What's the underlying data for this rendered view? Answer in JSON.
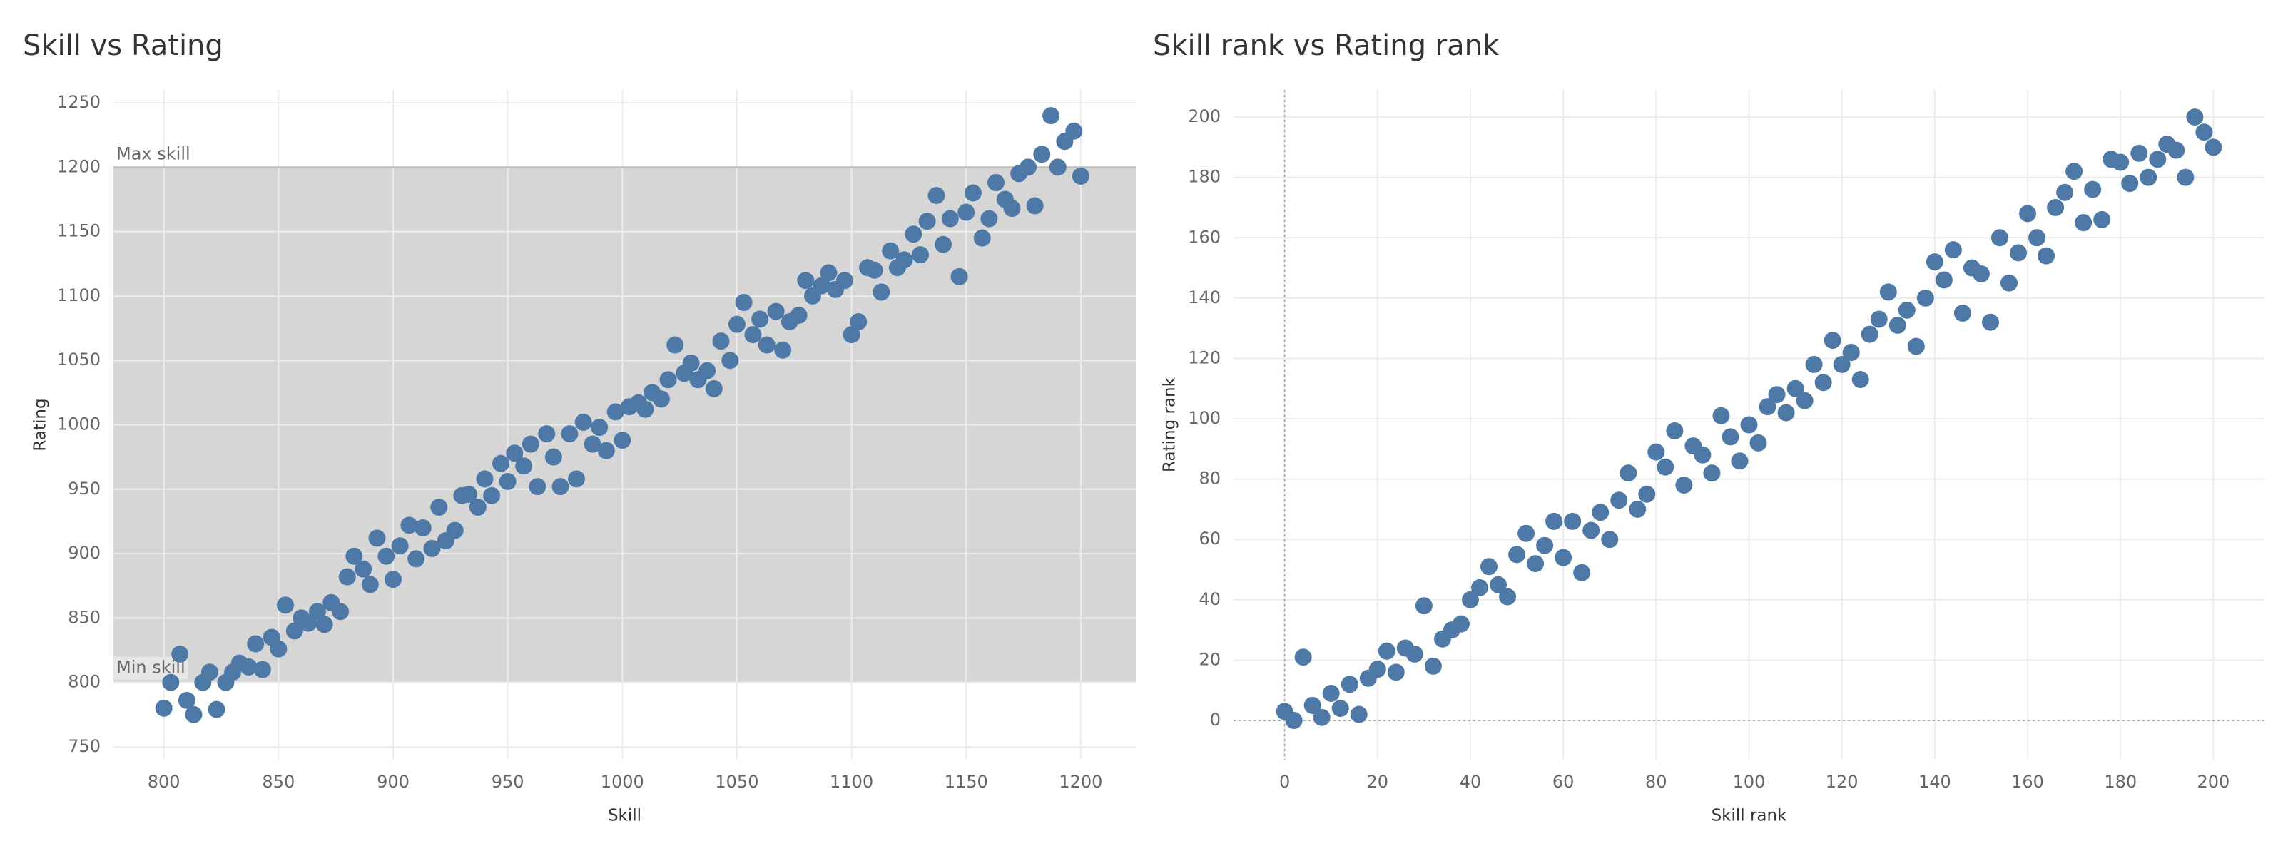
{
  "chart_data": [
    {
      "type": "scatter",
      "title": "Skill vs Rating",
      "x_label": "Skill",
      "y_label": "Rating",
      "x": [
        800,
        803,
        807,
        810,
        813,
        817,
        820,
        823,
        827,
        830,
        833,
        837,
        840,
        843,
        847,
        850,
        853,
        857,
        860,
        863,
        867,
        870,
        873,
        877,
        880,
        883,
        887,
        890,
        893,
        897,
        900,
        903,
        907,
        910,
        913,
        917,
        920,
        923,
        927,
        930,
        933,
        937,
        940,
        943,
        947,
        950,
        953,
        957,
        960,
        963,
        967,
        970,
        973,
        977,
        980,
        983,
        987,
        990,
        993,
        997,
        1000,
        1003,
        1007,
        1010,
        1013,
        1017,
        1020,
        1023,
        1027,
        1030,
        1033,
        1037,
        1040,
        1043,
        1047,
        1050,
        1053,
        1057,
        1060,
        1063,
        1067,
        1070,
        1073,
        1077,
        1080,
        1083,
        1087,
        1090,
        1093,
        1097,
        1100,
        1103,
        1107,
        1110,
        1113,
        1117,
        1120,
        1123,
        1127,
        1130,
        1133,
        1137,
        1140,
        1143,
        1147,
        1150,
        1153,
        1157,
        1160,
        1163,
        1167,
        1170,
        1173,
        1177,
        1180,
        1183,
        1187,
        1190,
        1193,
        1197,
        1200
      ],
      "values": [
        780,
        800,
        822,
        786,
        775,
        800,
        808,
        779,
        800,
        808,
        815,
        812,
        830,
        810,
        835,
        826,
        860,
        840,
        850,
        846,
        855,
        845,
        862,
        855,
        882,
        898,
        888,
        876,
        912,
        898,
        880,
        906,
        922,
        896,
        920,
        904,
        936,
        910,
        918,
        945,
        946,
        936,
        958,
        945,
        970,
        956,
        978,
        968,
        985,
        952,
        993,
        975,
        952,
        993,
        958,
        1002,
        985,
        998,
        980,
        1010,
        988,
        1014,
        1017,
        1012,
        1025,
        1020,
        1035,
        1062,
        1040,
        1048,
        1035,
        1042,
        1028,
        1065,
        1050,
        1078,
        1095,
        1070,
        1082,
        1062,
        1088,
        1058,
        1080,
        1085,
        1112,
        1100,
        1108,
        1118,
        1105,
        1112,
        1070,
        1080,
        1122,
        1120,
        1103,
        1135,
        1122,
        1128,
        1148,
        1132,
        1158,
        1178,
        1140,
        1160,
        1115,
        1165,
        1180,
        1145,
        1160,
        1188,
        1175,
        1168,
        1195,
        1200,
        1170,
        1210,
        1240,
        1200,
        1220,
        1228,
        1193
      ],
      "color": "#4e79a7",
      "xlim": [
        778,
        1224
      ],
      "ylim": [
        740,
        1260
      ],
      "xticks": [
        800,
        850,
        900,
        950,
        1000,
        1050,
        1100,
        1150,
        1200
      ],
      "yticks": [
        750,
        800,
        850,
        900,
        950,
        1000,
        1050,
        1100,
        1150,
        1200,
        1250
      ],
      "grid": true,
      "reference_band": {
        "from": 800,
        "to": 1200,
        "label_from": "Min skill",
        "label_to": "Max skill",
        "color": "#d6d6d6"
      }
    },
    {
      "type": "scatter",
      "title": "Skill rank vs Rating rank",
      "x_label": "Skill rank",
      "y_label": "Rating rank",
      "x": [
        0,
        2,
        4,
        6,
        8,
        10,
        12,
        14,
        16,
        18,
        20,
        22,
        24,
        26,
        28,
        30,
        32,
        34,
        36,
        38,
        40,
        42,
        44,
        46,
        48,
        50,
        52,
        54,
        56,
        58,
        60,
        62,
        64,
        66,
        68,
        70,
        72,
        74,
        76,
        78,
        80,
        82,
        84,
        86,
        88,
        90,
        92,
        94,
        96,
        98,
        100,
        102,
        104,
        106,
        108,
        110,
        112,
        114,
        116,
        118,
        120,
        122,
        124,
        126,
        128,
        130,
        132,
        134,
        136,
        138,
        140,
        142,
        144,
        146,
        148,
        150,
        152,
        154,
        156,
        158,
        160,
        162,
        164,
        166,
        168,
        170,
        172,
        174,
        176,
        178,
        180,
        182,
        184,
        186,
        188,
        190,
        192,
        194,
        196,
        198,
        200
      ],
      "values": [
        3,
        0,
        21,
        5,
        1,
        9,
        4,
        12,
        2,
        14,
        17,
        23,
        16,
        24,
        22,
        38,
        18,
        27,
        30,
        32,
        40,
        44,
        51,
        45,
        41,
        55,
        62,
        52,
        58,
        66,
        54,
        66,
        49,
        63,
        69,
        60,
        73,
        82,
        70,
        75,
        89,
        84,
        96,
        78,
        91,
        88,
        82,
        101,
        94,
        86,
        98,
        92,
        104,
        108,
        102,
        110,
        106,
        118,
        112,
        126,
        118,
        122,
        113,
        128,
        133,
        142,
        131,
        136,
        124,
        140,
        152,
        146,
        156,
        135,
        150,
        148,
        132,
        160,
        145,
        155,
        168,
        160,
        154,
        170,
        175,
        182,
        165,
        176,
        166,
        186,
        185,
        178,
        188,
        180,
        186,
        191,
        189,
        180,
        200,
        195,
        190
      ],
      "color": "#4e79a7",
      "xlim": [
        -11,
        211
      ],
      "ylim": [
        -13,
        209
      ],
      "xticks": [
        0,
        20,
        40,
        60,
        80,
        100,
        120,
        140,
        160,
        180,
        200
      ],
      "yticks": [
        0,
        20,
        40,
        60,
        80,
        100,
        120,
        140,
        160,
        180,
        200
      ],
      "grid": true,
      "zero_lines": true
    }
  ]
}
